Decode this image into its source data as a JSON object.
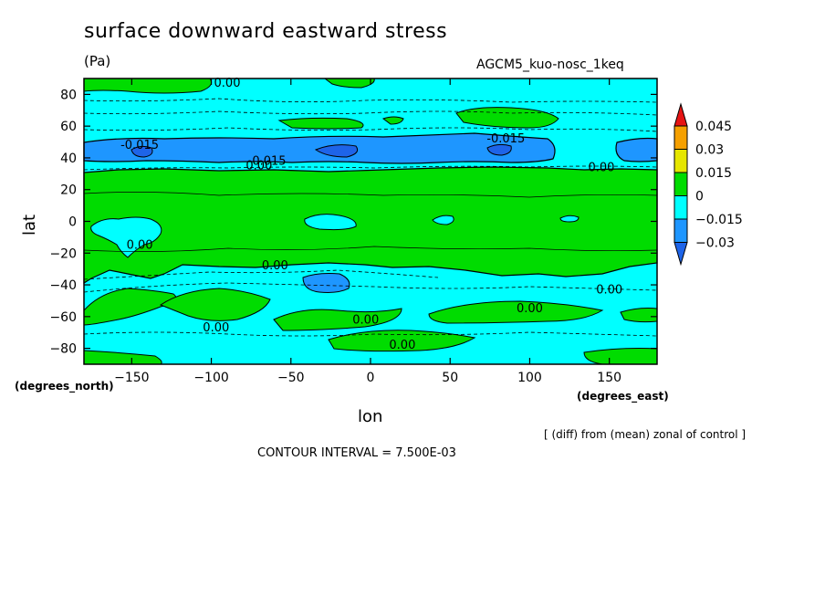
{
  "header": {
    "title": "surface downward eastward stress",
    "units": "(Pa)",
    "experiment": "AGCM5_kuo-nosc_1keq",
    "note": "[ (diff) from (mean) zonal of control ]",
    "contour_interval": "CONTOUR INTERVAL = 7.500E-03"
  },
  "colors": {
    "c_m045": "#1e64e8",
    "c_m030": "#1e96ff",
    "c_m015": "#00ffff",
    "c_p000": "#00dc00",
    "c_p015": "#e6e600",
    "c_p030": "#f5a000",
    "c_p045": "#e61414"
  },
  "chart_data": {
    "type": "heatmap",
    "title": "surface downward eastward stress",
    "xlabel": "lon",
    "ylabel": "lat",
    "x_units": "(degrees_east)",
    "y_units": "(degrees_north)",
    "xlim": [
      -180,
      180
    ],
    "ylim": [
      -90,
      90
    ],
    "x_ticks": [
      -150,
      -100,
      -50,
      0,
      50,
      100,
      150
    ],
    "y_ticks": [
      80,
      60,
      40,
      20,
      0,
      -20,
      -40,
      -60,
      -80
    ],
    "colorbar": {
      "levels": [
        "0.045",
        "0.03",
        "0.015",
        "0",
        "-0.015",
        "-0.03"
      ],
      "colors": [
        "#e61414",
        "#f5a000",
        "#e6e600",
        "#00dc00",
        "#00ffff",
        "#1e96ff",
        "#1e64e8"
      ]
    },
    "contour_labels": [
      {
        "text": "0.00",
        "lon": -90,
        "lat": 87
      },
      {
        "text": "-0.015",
        "lon": -145,
        "lat": 48
      },
      {
        "text": "-0.015",
        "lon": 85,
        "lat": 52
      },
      {
        "text": "-0.015",
        "lon": -65,
        "lat": 38
      },
      {
        "text": "0.00",
        "lon": -70,
        "lat": 35
      },
      {
        "text": "0.00",
        "lon": 145,
        "lat": 34
      },
      {
        "text": "0.00",
        "lon": -145,
        "lat": -15
      },
      {
        "text": "0.00",
        "lon": -60,
        "lat": -28
      },
      {
        "text": "0.00",
        "lon": 150,
        "lat": -43
      },
      {
        "text": "0.00",
        "lon": 100,
        "lat": -55
      },
      {
        "text": "0.00",
        "lon": -3,
        "lat": -62
      },
      {
        "text": "0.00",
        "lon": -97,
        "lat": -67
      },
      {
        "text": "0.00",
        "lon": 20,
        "lat": -78
      }
    ]
  }
}
